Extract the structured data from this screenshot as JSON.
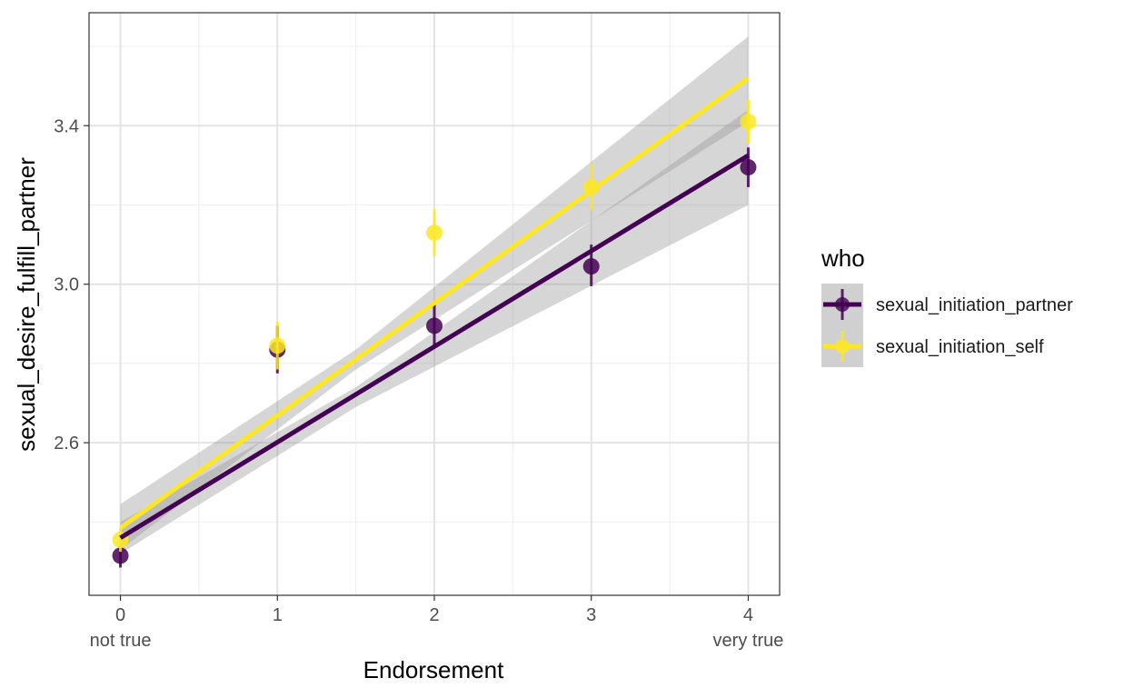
{
  "chart_data": {
    "type": "scatter",
    "title": "",
    "xlabel": "Endorsement",
    "ylabel": "sexual_desire_fulfill_partner",
    "x_ticks": [
      0,
      1,
      2,
      3,
      4
    ],
    "x_tick_labels": [
      "0",
      "1",
      "2",
      "3",
      "4"
    ],
    "x_sublabels": [
      {
        "x": 0,
        "label": "not true"
      },
      {
        "x": 4,
        "label": "very true"
      }
    ],
    "y_ticks": [
      2.6,
      3.0,
      3.4
    ],
    "y_tick_labels": [
      "2.6",
      "3.0",
      "3.4"
    ],
    "xlim": [
      -0.2,
      4.2
    ],
    "ylim": [
      2.215,
      3.685
    ],
    "grid": true,
    "legend": {
      "title": "who",
      "placement": "right"
    },
    "series": [
      {
        "name": "sexual_initiation_partner",
        "color": "#440154",
        "points": [
          {
            "x": 0,
            "y": 2.315,
            "lo": 2.285,
            "hi": 2.345
          },
          {
            "x": 1,
            "y": 2.835,
            "lo": 2.775,
            "hi": 2.895
          },
          {
            "x": 2,
            "y": 2.895,
            "lo": 2.84,
            "hi": 2.95
          },
          {
            "x": 3,
            "y": 3.045,
            "lo": 2.995,
            "hi": 3.1
          },
          {
            "x": 4,
            "y": 3.295,
            "lo": 3.245,
            "hi": 3.345
          }
        ],
        "fit": {
          "x": [
            0,
            4
          ],
          "y": [
            2.36,
            3.325
          ]
        },
        "ribbon": {
          "x": [
            0,
            1.5,
            4
          ],
          "lo": [
            2.32,
            2.69,
            3.2
          ],
          "hi": [
            2.4,
            2.74,
            3.44
          ]
        }
      },
      {
        "name": "sexual_initiation_self",
        "color": "#FDE725",
        "points": [
          {
            "x": 0,
            "y": 2.355,
            "lo": 2.325,
            "hi": 2.385
          },
          {
            "x": 1,
            "y": 2.845,
            "lo": 2.785,
            "hi": 2.905
          },
          {
            "x": 2,
            "y": 3.13,
            "lo": 3.07,
            "hi": 3.19
          },
          {
            "x": 3,
            "y": 3.245,
            "lo": 3.185,
            "hi": 3.305
          },
          {
            "x": 4,
            "y": 3.41,
            "lo": 3.355,
            "hi": 3.465
          }
        ],
        "fit": {
          "x": [
            0,
            4
          ],
          "y": [
            2.385,
            3.52
          ]
        },
        "ribbon": {
          "x": [
            0,
            1.5,
            4
          ],
          "lo": [
            2.33,
            2.785,
            3.41
          ],
          "hi": [
            2.445,
            2.835,
            3.625
          ]
        }
      }
    ]
  }
}
